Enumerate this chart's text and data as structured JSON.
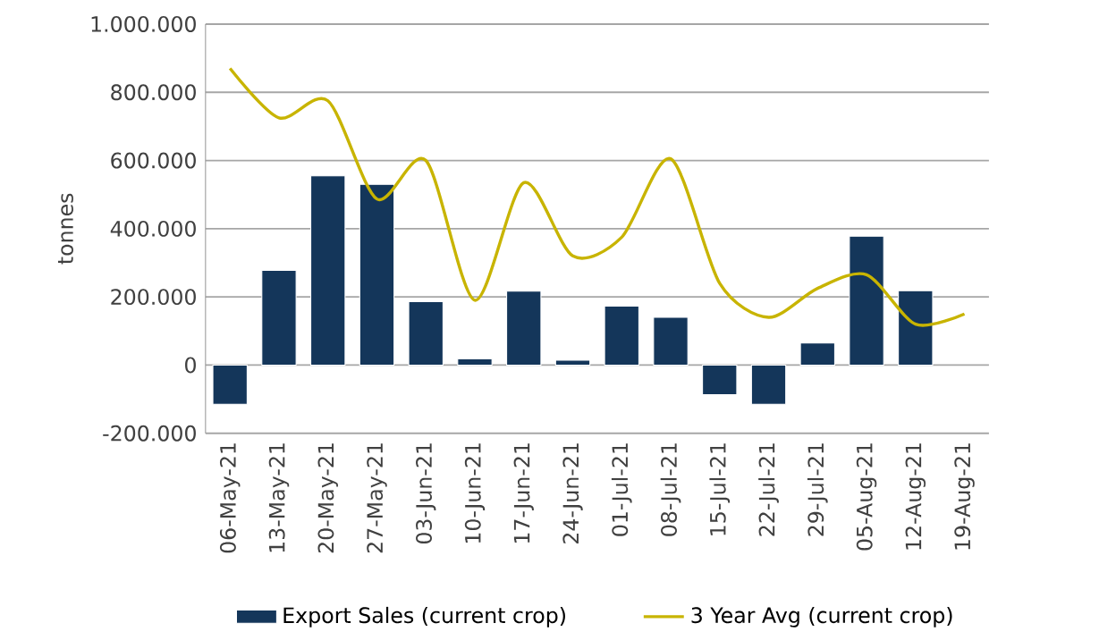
{
  "chart_data": {
    "type": "bar",
    "ylabel": "tonnes",
    "categories": [
      "06-May-21",
      "13-May-21",
      "20-May-21",
      "27-May-21",
      "03-Jun-21",
      "10-Jun-21",
      "17-Jun-21",
      "24-Jun-21",
      "01-Jul-21",
      "08-Jul-21",
      "15-Jul-21",
      "22-Jul-21",
      "29-Jul-21",
      "05-Aug-21",
      "12-Aug-21",
      "19-Aug-21"
    ],
    "series": [
      {
        "name": "Export Sales (current crop)",
        "color": "#14365a",
        "values": [
          -115000,
          278000,
          555000,
          530000,
          186000,
          18000,
          217000,
          14000,
          173000,
          140000,
          -87000,
          -115000,
          65000,
          378000,
          218000,
          null
        ]
      },
      {
        "name": "3 Year Avg (current crop)",
        "type": "line",
        "color": "#c8b400",
        "values": [
          870000,
          725000,
          775000,
          487000,
          600000,
          190000,
          535000,
          320000,
          375000,
          605000,
          240000,
          140000,
          225000,
          265000,
          120000,
          150000
        ]
      }
    ],
    "ylim": [
      -200000,
      1000000
    ],
    "yticks": [
      {
        "value": -200000,
        "label": "-200.000"
      },
      {
        "value": 0,
        "label": "0"
      },
      {
        "value": 200000,
        "label": "200.000"
      },
      {
        "value": 400000,
        "label": "400.000"
      },
      {
        "value": 600000,
        "label": "600.000"
      },
      {
        "value": 800000,
        "label": "800.000"
      },
      {
        "value": 1000000,
        "label": "1.000.000"
      }
    ],
    "grid": "y",
    "legend": "bottom"
  }
}
